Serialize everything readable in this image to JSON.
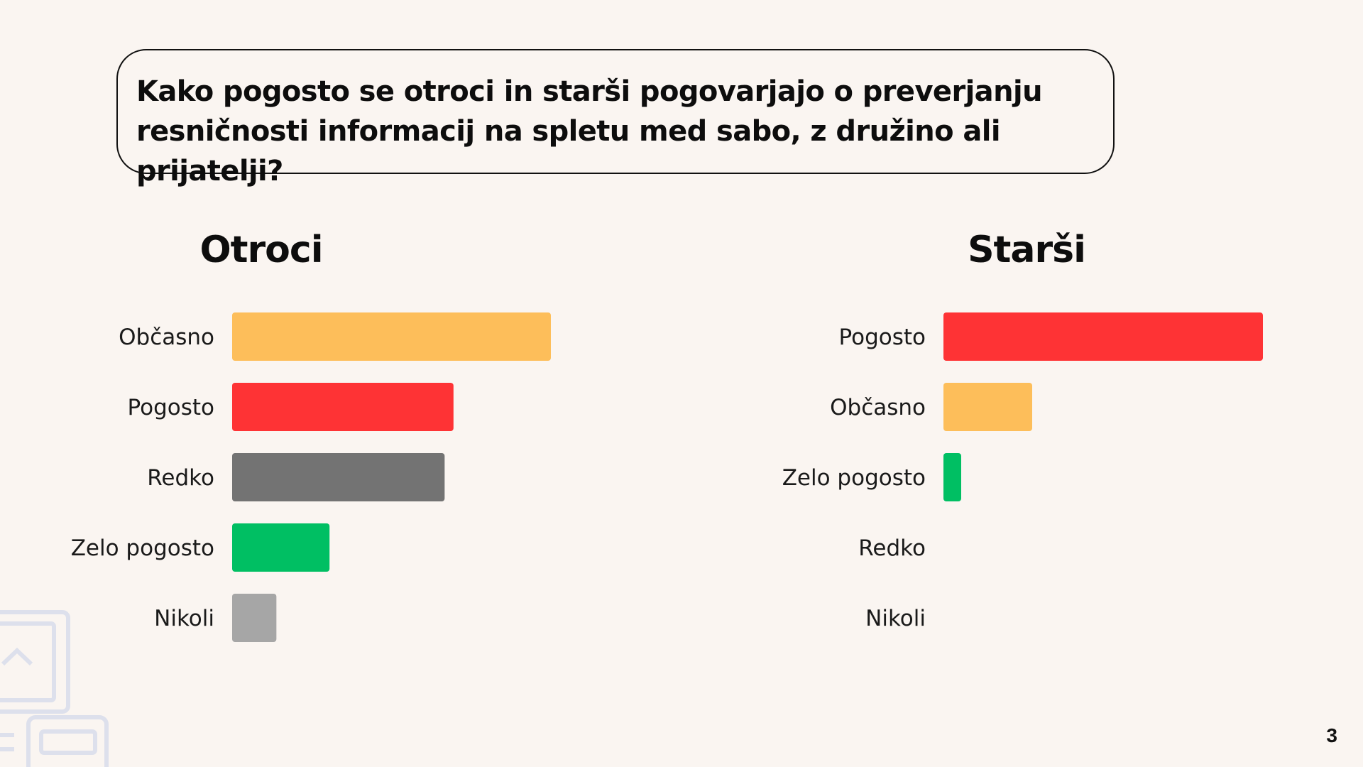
{
  "question": "Kako pogosto se otroci in starši pogovarjajo o preverjanju resničnosti informacij na spletu med sabo, z družino ali prijatelji?",
  "page_number": "3",
  "chart_data": [
    {
      "type": "bar",
      "orientation": "horizontal",
      "title": "Otroci",
      "categories": [
        "Občasno",
        "Pogosto",
        "Redko",
        "Zelo pogosto",
        "Nikoli"
      ],
      "values": [
        36,
        25,
        24,
        11,
        5
      ],
      "colors": [
        "#fdbe5a",
        "#fe3335",
        "#737373",
        "#00bf63",
        "#a6a6a6"
      ],
      "xlim": [
        0,
        36
      ],
      "grid": false,
      "legend": "none"
    },
    {
      "type": "bar",
      "orientation": "horizontal",
      "title": "Starši",
      "categories": [
        "Pogosto",
        "Občasno",
        "Zelo pogosto",
        "Redko",
        "Nikoli"
      ],
      "values": [
        36,
        10,
        2,
        0,
        0
      ],
      "colors": [
        "#fe3335",
        "#fdbe5a",
        "#00bf63",
        "#737373",
        "#a6a6a6"
      ],
      "xlim": [
        0,
        36
      ],
      "grid": false,
      "legend": "none"
    }
  ]
}
